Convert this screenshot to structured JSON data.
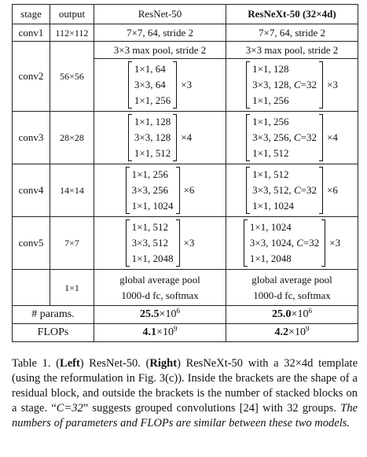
{
  "table": {
    "headers": {
      "stage": "stage",
      "output": "output",
      "resnet": "ResNet-50",
      "resnext": "ResNeXt-50 (32×4d)"
    },
    "conv1": {
      "stage": "conv1",
      "output": "112×112",
      "resnet": "7×7, 64, stride 2",
      "resnext": "7×7, 64, stride 2"
    },
    "maxpool": {
      "resnet": "3×3 max pool, stride 2",
      "resnext": "3×3 max pool, stride 2"
    },
    "blocks": [
      {
        "stage": "conv2",
        "output": "56×56",
        "resnet": [
          "1×1, 64",
          "3×3, 64",
          "1×1, 256"
        ],
        "resnet_mult": "×3",
        "resnext": [
          "1×1, 128",
          "3×3, 128, C=32",
          "1×1, 256"
        ],
        "resnext_mult": "×3"
      },
      {
        "stage": "conv3",
        "output": "28×28",
        "resnet": [
          "1×1, 128",
          "3×3, 128",
          "1×1, 512"
        ],
        "resnet_mult": "×4",
        "resnext": [
          "1×1, 256",
          "3×3, 256, C=32",
          "1×1, 512"
        ],
        "resnext_mult": "×4"
      },
      {
        "stage": "conv4",
        "output": "14×14",
        "resnet": [
          "1×1, 256",
          "3×3, 256",
          "1×1, 1024"
        ],
        "resnet_mult": "×6",
        "resnext": [
          "1×1, 512",
          "3×3, 512, C=32",
          "1×1, 1024"
        ],
        "resnext_mult": "×6"
      },
      {
        "stage": "conv5",
        "output": "7×7",
        "resnet": [
          "1×1, 512",
          "3×3, 512",
          "1×1, 2048"
        ],
        "resnet_mult": "×3",
        "resnext": [
          "1×1, 1024",
          "3×3, 1024, C=32",
          "1×1, 2048"
        ],
        "resnext_mult": "×3"
      }
    ],
    "pool": {
      "output": "1×1",
      "resnet": [
        "global average pool",
        "1000-d fc, softmax"
      ],
      "resnext": [
        "global average pool",
        "1000-d fc, softmax"
      ]
    },
    "params": {
      "label": "# params.",
      "resnet_base": "25.5",
      "resnet_exp": "6",
      "resnext_base": "25.0",
      "resnext_exp": "6",
      "times": "×10"
    },
    "flops": {
      "label": "FLOPs",
      "resnet_base": "4.1",
      "resnet_exp": "9",
      "resnext_base": "4.2",
      "resnext_exp": "9",
      "times": "×10"
    }
  },
  "caption": {
    "prefix": "Table 1. (",
    "left_label": "Left",
    "left_text": ") ResNet-50.  (",
    "right_label": "Right",
    "right_text": ") ResNeXt-50 with a 32×4d template (using the reformulation in Fig. 3(c)). Inside the brackets are the shape of a residual block, and outside the brackets is the number of stacked blocks on a stage. “",
    "c_eq": "C=32",
    "mid_text": "” suggests grouped convolutions [24] with 32 groups. ",
    "italic_text": "The numbers of parameters and FLOPs are similar between these two models."
  }
}
